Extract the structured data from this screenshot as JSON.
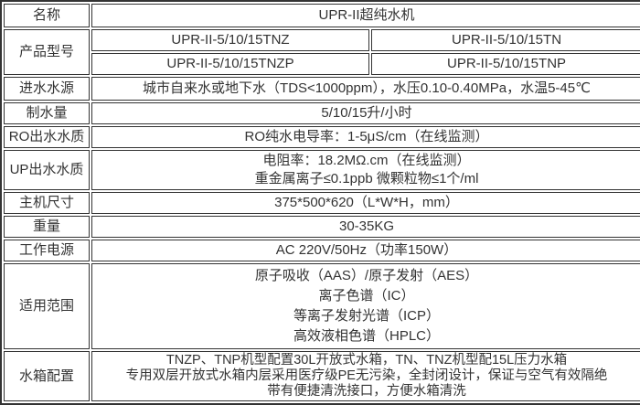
{
  "colors": {
    "border": "#333333",
    "text": "#333333",
    "background": "#ffffff"
  },
  "table": {
    "rows": [
      {
        "label": "名称",
        "value": "UPR-II超纯水机"
      },
      {
        "label": "产品型号",
        "models": [
          [
            "UPR-II-5/10/15TNZ",
            "UPR-II-5/10/15TN"
          ],
          [
            "UPR-II-5/10/15TNZP",
            "UPR-II-5/10/15TNP"
          ]
        ]
      },
      {
        "label": "进水水源",
        "value": "城市自来水或地下水（TDS<1000ppm），水压0.10-0.40MPa，水温5-45℃"
      },
      {
        "label": "制水量",
        "value": "5/10/15升/小时"
      },
      {
        "label": "RO出水水质",
        "value": "RO纯水电导率：1-5μS/cm（在线监测）"
      },
      {
        "label": "UP出水水质",
        "lines": [
          "电阻率：18.2MΩ.cm（在线监测）",
          "重金属离子≤0.1ppb 微颗粒物≤1个/ml"
        ]
      },
      {
        "label": "主机尺寸",
        "value": "375*500*620（L*W*H，mm）"
      },
      {
        "label": "重量",
        "value": "30-35KG"
      },
      {
        "label": "工作电源",
        "value": "AC 220V/50Hz（功率150W）"
      },
      {
        "label": "适用范围",
        "lines": [
          "原子吸收（AAS）/原子发射（AES）",
          "离子色谱（IC）",
          "等离子发射光谱（ICP）",
          "高效液相色谱（HPLC）"
        ]
      },
      {
        "label": "水箱配置",
        "lines": [
          "TNZP、TNP机型配置30L开放式水箱，TN、TNZ机型配15L压力水箱",
          "专用双层开放式水箱内层采用医疗级PE无污染，全封闭设计，保证与空气有效隔绝",
          "带有便捷清洗接口，方便水箱清洗"
        ]
      }
    ]
  }
}
